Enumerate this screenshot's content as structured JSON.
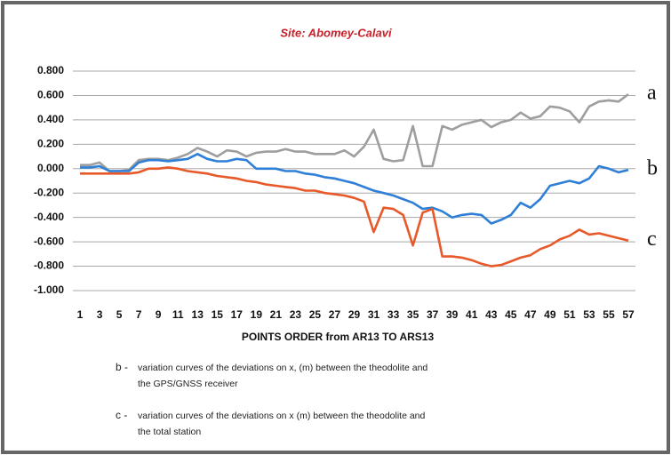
{
  "chart_data": {
    "type": "line",
    "title": "Site: Abomey-Calavi",
    "x_label": "POINTS ORDER from AR13 TO ARS13",
    "categories": [
      "1",
      null,
      "3",
      null,
      "5",
      null,
      "7",
      null,
      "9",
      null,
      "11",
      null,
      "13",
      null,
      "15",
      null,
      "17",
      null,
      "19",
      null,
      "21",
      null,
      "23",
      null,
      "25",
      null,
      "27",
      null,
      "29",
      null,
      "31",
      null,
      "33",
      null,
      "35",
      null,
      "37",
      null,
      "39",
      null,
      "41",
      null,
      "43",
      null,
      "45",
      null,
      "47",
      null,
      "49",
      null,
      "51",
      null,
      "53",
      null,
      "55",
      null,
      "57"
    ],
    "series": [
      {
        "name": "a",
        "color": "#9e9e9e",
        "values": [
          0.03,
          0.03,
          0.05,
          -0.02,
          -0.02,
          -0.01,
          0.07,
          0.08,
          0.08,
          0.07,
          0.09,
          0.12,
          0.17,
          0.14,
          0.1,
          0.15,
          0.14,
          0.1,
          0.13,
          0.14,
          0.14,
          0.16,
          0.14,
          0.14,
          0.12,
          0.12,
          0.12,
          0.15,
          0.1,
          0.18,
          0.32,
          0.08,
          0.06,
          0.07,
          0.35,
          0.02,
          0.02,
          0.35,
          0.32,
          0.36,
          0.38,
          0.4,
          0.34,
          0.38,
          0.4,
          0.46,
          0.41,
          0.43,
          0.51,
          0.5,
          0.47,
          0.38,
          0.51,
          0.55,
          0.56,
          0.55,
          0.61
        ]
      },
      {
        "name": "b",
        "color": "#2f7fd6",
        "values": [
          0.01,
          0.01,
          0.02,
          -0.02,
          -0.02,
          -0.02,
          0.05,
          0.07,
          0.07,
          0.06,
          0.07,
          0.08,
          0.12,
          0.08,
          0.06,
          0.06,
          0.08,
          0.07,
          0.0,
          0.0,
          0.0,
          -0.02,
          -0.02,
          -0.04,
          -0.05,
          -0.07,
          -0.08,
          -0.1,
          -0.12,
          -0.15,
          -0.18,
          -0.2,
          -0.22,
          -0.25,
          -0.28,
          -0.33,
          -0.32,
          -0.35,
          -0.4,
          -0.38,
          -0.37,
          -0.38,
          -0.45,
          -0.42,
          -0.38,
          -0.28,
          -0.32,
          -0.25,
          -0.14,
          -0.12,
          -0.1,
          -0.12,
          -0.08,
          0.02,
          0.0,
          -0.03,
          -0.01
        ]
      },
      {
        "name": "c",
        "color": "#e8592a",
        "values": [
          -0.04,
          -0.04,
          -0.04,
          -0.04,
          -0.04,
          -0.04,
          -0.03,
          0.0,
          0.0,
          0.01,
          0.0,
          -0.02,
          -0.03,
          -0.04,
          -0.06,
          -0.07,
          -0.08,
          -0.1,
          -0.11,
          -0.13,
          -0.14,
          -0.15,
          -0.16,
          -0.18,
          -0.18,
          -0.2,
          -0.21,
          -0.22,
          -0.24,
          -0.27,
          -0.52,
          -0.32,
          -0.33,
          -0.38,
          -0.63,
          -0.36,
          -0.33,
          -0.72,
          -0.72,
          -0.73,
          -0.75,
          -0.78,
          -0.8,
          -0.79,
          -0.76,
          -0.73,
          -0.71,
          -0.66,
          -0.63,
          -0.58,
          -0.55,
          -0.5,
          -0.54,
          -0.53,
          -0.55,
          -0.57,
          -0.59
        ]
      }
    ],
    "ylim": [
      -1.0,
      0.8
    ],
    "yticks": [
      {
        "value": 0.8,
        "label": "0.800"
      },
      {
        "value": 0.6,
        "label": "0.600"
      },
      {
        "value": 0.4,
        "label": "0.400"
      },
      {
        "value": 0.2,
        "label": "0.200"
      },
      {
        "value": 0,
        "label": "0.000"
      },
      {
        "value": -0.2,
        "label": "-0.200"
      },
      {
        "value": -0.4,
        "label": "-0.400"
      },
      {
        "value": -0.6,
        "label": "-0.600"
      },
      {
        "value": -0.8,
        "label": "-0.800"
      },
      {
        "value": -1.0,
        "label": "-1.000"
      }
    ],
    "grid": true,
    "notes": [
      {
        "key": "b -",
        "lines": [
          "variation curves  of the deviations on x, (m) between the theodolite and",
          "the GPS/GNSS receiver"
        ]
      },
      {
        "key": "c -",
        "lines": [
          "variation curves of the deviations on x (m) between the theodolite and",
          "the total station"
        ]
      }
    ]
  }
}
